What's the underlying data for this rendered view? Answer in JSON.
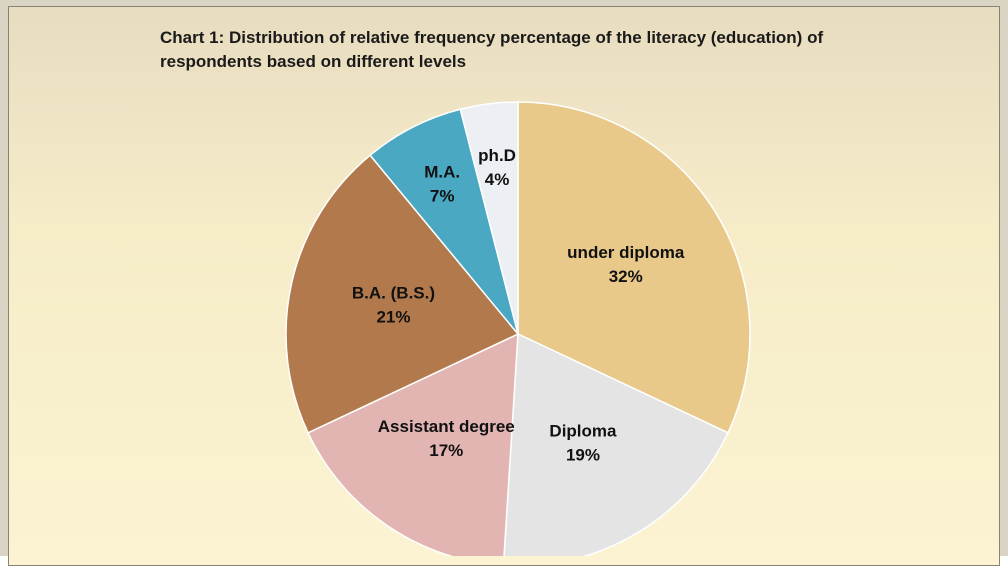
{
  "chart_data": {
    "type": "pie",
    "title": "Chart 1: Distribution of relative frequency percentage of the literacy (education) of respondents  based on different levels",
    "categories": [
      "under diploma",
      "Diploma",
      "Assistant degree",
      "B.A. (B.S.)",
      "M.A.",
      "ph.D"
    ],
    "values": [
      32,
      19,
      17,
      21,
      7,
      4
    ],
    "value_labels": [
      "32%",
      "19%",
      "17%",
      "21%",
      "7%",
      "4%"
    ],
    "colors": [
      "#e8c98a",
      "#e4e4e4",
      "#e2b5b3",
      "#b27a4c",
      "#4aa8c2",
      "#eceff3"
    ]
  }
}
